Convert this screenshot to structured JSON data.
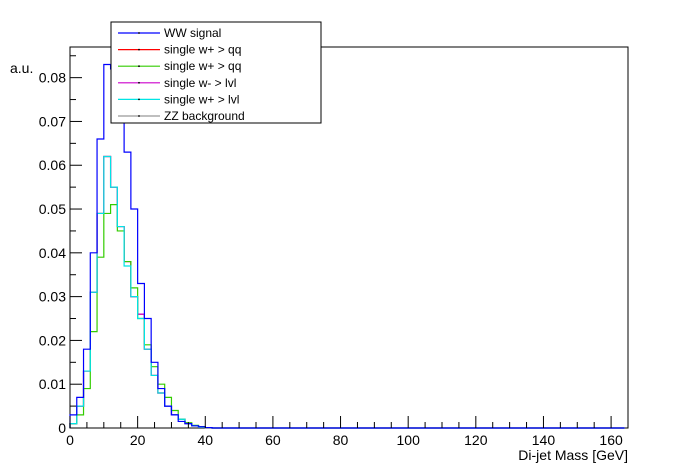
{
  "chart_data": {
    "type": "line",
    "xlabel": "Di-jet Mass [GeV]",
    "ylabel": "a.u.",
    "xlim": [
      0,
      165
    ],
    "ylim": [
      0,
      0.087
    ],
    "bin_width": 2,
    "x_ticks": [
      0,
      20,
      40,
      60,
      80,
      100,
      120,
      140,
      160
    ],
    "x_tick_labels": [
      "0",
      "20",
      "40",
      "60",
      "80",
      "100",
      "120",
      "140",
      "160"
    ],
    "y_ticks": [
      0,
      0.01,
      0.02,
      0.03,
      0.04,
      0.05,
      0.06,
      0.07,
      0.08
    ],
    "y_tick_labels": [
      "0",
      "0.01",
      "0.02",
      "0.03",
      "0.04",
      "0.05",
      "0.06",
      "0.07",
      "0.08"
    ],
    "legend_position": "top-left",
    "series": [
      {
        "name": "WW signal",
        "color": "#0000ff",
        "values": [
          0.003,
          0.007,
          0.018,
          0.04,
          0.066,
          0.083,
          0.082,
          0.076,
          0.063,
          0.05,
          0.033,
          0.025,
          0.015,
          0.009,
          0.005,
          0.003,
          0.0015,
          0.001,
          0.0005,
          0.0003,
          0.0001,
          0,
          0,
          0,
          0,
          0,
          0,
          0,
          0,
          0,
          0,
          0,
          0,
          0,
          0,
          0,
          0,
          0,
          0,
          0,
          0,
          0,
          0,
          0,
          0,
          0,
          0,
          0,
          0,
          0,
          0,
          0,
          0,
          0,
          0,
          0,
          0,
          0,
          0,
          0,
          0,
          0,
          0,
          0,
          0,
          0,
          0,
          0,
          0,
          0,
          0,
          0,
          0,
          0,
          0,
          0,
          0,
          0,
          0,
          0,
          0,
          0
        ]
      },
      {
        "name": "single w+ > qq",
        "color": "#ff0000",
        "values": [
          0.001,
          0.005,
          0.013,
          0.031,
          0.049,
          0.062,
          0.055,
          0.046,
          0.038,
          0.03,
          0.026,
          0.018,
          0.012,
          0.008,
          0.005,
          0.003,
          0.002,
          0.001,
          0.0005,
          0.0002,
          0.0001,
          0,
          0,
          0,
          0,
          0,
          0,
          0,
          0,
          0,
          0,
          0,
          0,
          0,
          0,
          0,
          0,
          0,
          0,
          0,
          0,
          0,
          0,
          0,
          0,
          0,
          0,
          0,
          0,
          0,
          0,
          0,
          0,
          0,
          0,
          0,
          0,
          0,
          0,
          0,
          0,
          0,
          0,
          0,
          0,
          0,
          0,
          0,
          0,
          0,
          0,
          0,
          0,
          0,
          0,
          0,
          0,
          0,
          0,
          0,
          0,
          0
        ]
      },
      {
        "name": "single w+ > qq",
        "color": "#33cc00",
        "values": [
          0.001,
          0.003,
          0.009,
          0.022,
          0.039,
          0.049,
          0.051,
          0.045,
          0.038,
          0.032,
          0.025,
          0.019,
          0.014,
          0.01,
          0.007,
          0.004,
          0.002,
          0.0012,
          0.0006,
          0.0003,
          0.0001,
          0,
          0,
          0,
          0,
          0,
          0,
          0,
          0,
          0,
          0,
          0,
          0,
          0,
          0,
          0,
          0,
          0,
          0,
          0,
          0,
          0,
          0,
          0,
          0,
          0,
          0,
          0,
          0,
          0,
          0,
          0,
          0,
          0,
          0,
          0,
          0,
          0,
          0,
          0,
          0,
          0,
          0,
          0,
          0,
          0,
          0,
          0,
          0,
          0,
          0,
          0,
          0,
          0,
          0,
          0,
          0,
          0,
          0,
          0,
          0,
          0
        ]
      },
      {
        "name": "single w- > lvl",
        "color": "#cc00cc",
        "values": [
          0.001,
          0.005,
          0.013,
          0.031,
          0.049,
          0.062,
          0.055,
          0.046,
          0.038,
          0.03,
          0.026,
          0.018,
          0.012,
          0.008,
          0.005,
          0.003,
          0.002,
          0.001,
          0.0005,
          0.0002,
          0.0001,
          0,
          0,
          0,
          0,
          0,
          0,
          0,
          0,
          0,
          0,
          0,
          0,
          0,
          0,
          0,
          0,
          0,
          0,
          0,
          0,
          0,
          0,
          0,
          0,
          0,
          0,
          0,
          0,
          0,
          0,
          0,
          0,
          0,
          0,
          0,
          0,
          0,
          0,
          0,
          0,
          0,
          0,
          0,
          0,
          0,
          0,
          0,
          0,
          0,
          0,
          0,
          0,
          0,
          0,
          0,
          0,
          0,
          0,
          0,
          0,
          0
        ]
      },
      {
        "name": "single w+ > lvl",
        "color": "#00e5e5",
        "values": [
          0.001,
          0.005,
          0.013,
          0.031,
          0.049,
          0.062,
          0.055,
          0.046,
          0.037,
          0.03,
          0.025,
          0.018,
          0.012,
          0.008,
          0.005,
          0.003,
          0.002,
          0.001,
          0.0005,
          0.0002,
          0.0001,
          0,
          0,
          0,
          0,
          0,
          0,
          0,
          0,
          0,
          0,
          0,
          0,
          0,
          0,
          0,
          0,
          0,
          0,
          0,
          0,
          0,
          0,
          0,
          0,
          0,
          0,
          0,
          0,
          0,
          0,
          0,
          0,
          0,
          0,
          0,
          0,
          0,
          0,
          0,
          0,
          0,
          0,
          0,
          0,
          0,
          0,
          0,
          0,
          0,
          0,
          0,
          0,
          0,
          0,
          0,
          0,
          0,
          0,
          0,
          0,
          0
        ]
      },
      {
        "name": "ZZ background",
        "color": "#999999",
        "values": []
      }
    ]
  }
}
